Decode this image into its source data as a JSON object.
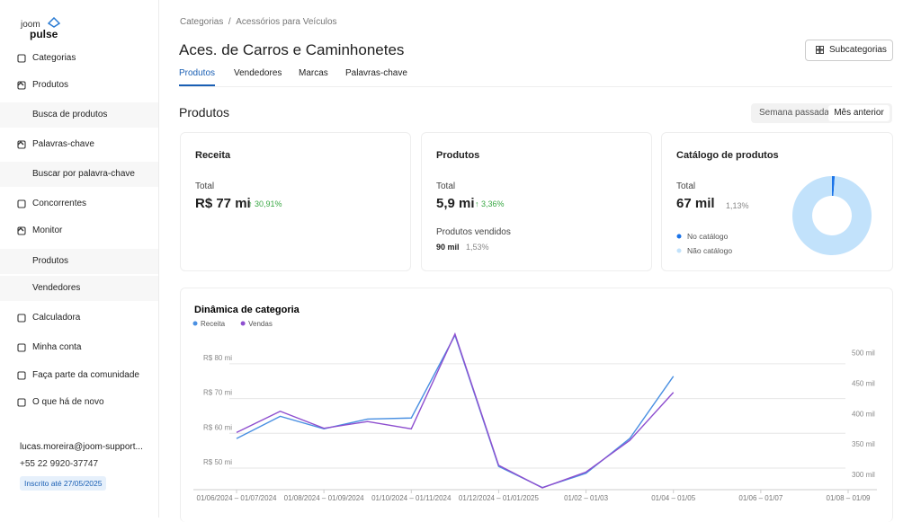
{
  "sidebar": {
    "logo": [
      "joom",
      "pulse"
    ],
    "menu": [
      "Categorias",
      "Produtos",
      "Busca de produtos",
      "Palavras-chave",
      "Buscar por palavra-chave",
      "Concorrentes",
      "Monitor",
      "Produtos",
      "Vendedores",
      "Calculadora",
      "Minha conta",
      "Faça parte da comunidade",
      "O que há de novo"
    ],
    "user": {
      "email": "lucas.moreira@joom-support...",
      "phone": "+55 22 9920-37747",
      "badge": "Inscrito até 27/05/2025"
    }
  },
  "header": {
    "breadcrumb": [
      "Categorias",
      "/",
      "Acessórios para Veículos"
    ],
    "title": "Aces. de Carros e Caminhonetes",
    "button": "Subcategorias",
    "tabs": [
      "Produtos",
      "Vendedores",
      "Marcas",
      "Palavras-chave"
    ]
  },
  "section": {
    "title": "Produtos",
    "periods": [
      "Semana passada",
      "Mês anterior"
    ]
  },
  "cards": {
    "revenue": {
      "title": "Receita",
      "label": "Total",
      "value": "R$ 77 mi",
      "change": "30,91%"
    },
    "products": {
      "title": "Produtos",
      "label": "Total",
      "value": "5,9 mi",
      "change": "3,36%",
      "sold_label": "Produtos vendidos",
      "sold_value": "90 mil",
      "sold_change": "1,53%"
    },
    "catalog": {
      "title": "Catálogo de produtos",
      "label": "Total",
      "value": "67 mil",
      "share": "1,13%"
    }
  },
  "chart_data": [
    {
      "type": "line",
      "title": "Dinâmica de categoria",
      "categories": [
        "01/06/2024 – 01/07/2024",
        null,
        "01/08/2024 – 01/09/2024",
        null,
        "01/10/2024 – 01/11/2024",
        null,
        "01/12/2024 – 01/01/2025",
        null,
        "01/02 – 01/03",
        null,
        "01/04 – 01/05",
        null,
        "01/06 – 01/07",
        null,
        "01/08 – 01/09"
      ],
      "series": [
        {
          "name": "Receita",
          "color": "#4a90e2",
          "values": [
            58.5,
            64.9,
            61.3,
            64.1,
            64.4,
            88.2,
            50.5,
            44.4,
            48.5,
            58.5,
            76.4,
            null,
            null,
            null,
            null
          ]
        },
        {
          "name": "Vendas",
          "color": "#8e4fcf",
          "axis": "y2",
          "values": [
            369,
            404,
            376,
            387,
            375,
            531,
            315,
            278,
            304,
            356,
            435,
            null,
            null,
            null,
            null
          ]
        }
      ],
      "ylim": [
        43.8,
        90.3
      ],
      "yticks": [
        {
          "value": 50,
          "label": "R$ 50 mi"
        },
        {
          "value": 60,
          "label": "R$ 60 mi"
        },
        {
          "value": 70,
          "label": "R$ 70 mi"
        },
        {
          "value": 80,
          "label": "R$ 80 mi"
        }
      ],
      "y2lim": [
        275,
        541
      ],
      "y2ticks": [
        {
          "value": 300,
          "label": "300 mil"
        },
        {
          "value": 350,
          "label": "350 mil"
        },
        {
          "value": 400,
          "label": "400 mil"
        },
        {
          "value": 450,
          "label": "450 mil"
        },
        {
          "value": 500,
          "label": "500 mil"
        }
      ],
      "grid": true,
      "legend": "top-left"
    },
    {
      "type": "pie",
      "categories": [
        "No catálogo",
        "Não catálogo"
      ],
      "values": [
        1.13,
        98.87
      ],
      "colors": [
        "#1a73e8",
        "#c2e2fb"
      ],
      "donut": true
    }
  ]
}
